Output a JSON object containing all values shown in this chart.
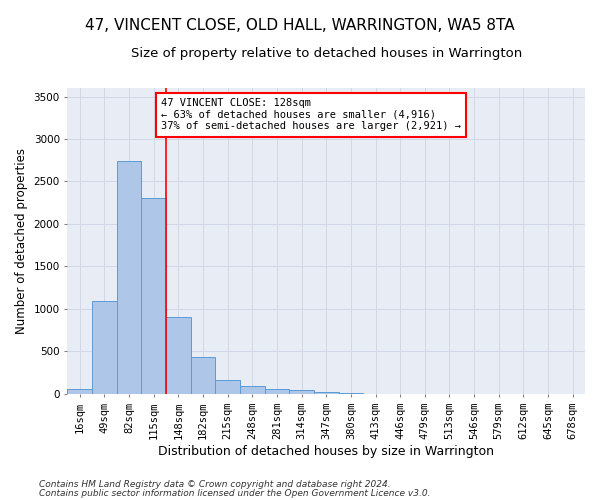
{
  "title": "47, VINCENT CLOSE, OLD HALL, WARRINGTON, WA5 8TA",
  "subtitle": "Size of property relative to detached houses in Warrington",
  "xlabel": "Distribution of detached houses by size in Warrington",
  "ylabel": "Number of detached properties",
  "footnote1": "Contains HM Land Registry data © Crown copyright and database right 2024.",
  "footnote2": "Contains public sector information licensed under the Open Government Licence v3.0.",
  "categories": [
    "16sqm",
    "49sqm",
    "82sqm",
    "115sqm",
    "148sqm",
    "182sqm",
    "215sqm",
    "248sqm",
    "281sqm",
    "314sqm",
    "347sqm",
    "380sqm",
    "413sqm",
    "446sqm",
    "479sqm",
    "513sqm",
    "546sqm",
    "579sqm",
    "612sqm",
    "645sqm",
    "678sqm"
  ],
  "values": [
    55,
    1095,
    2740,
    2310,
    900,
    430,
    160,
    90,
    55,
    40,
    20,
    5,
    2,
    1,
    0,
    0,
    0,
    0,
    0,
    0,
    0
  ],
  "bar_color": "#aec6e8",
  "bar_edge_color": "#5b9bd5",
  "grid_color": "#d0d8e8",
  "background_color": "#e8edf5",
  "red_line_x": 3.5,
  "ylim": [
    0,
    3600
  ],
  "yticks": [
    0,
    500,
    1000,
    1500,
    2000,
    2500,
    3000,
    3500
  ],
  "annotation_text": "47 VINCENT CLOSE: 128sqm\n← 63% of detached houses are smaller (4,916)\n37% of semi-detached houses are larger (2,921) →",
  "annotation_box_color": "white",
  "annotation_border_color": "red",
  "title_fontsize": 11,
  "subtitle_fontsize": 9.5,
  "ylabel_fontsize": 8.5,
  "xlabel_fontsize": 9,
  "tick_fontsize": 7.5,
  "footnote_fontsize": 6.5,
  "annotation_fontsize": 7.5
}
